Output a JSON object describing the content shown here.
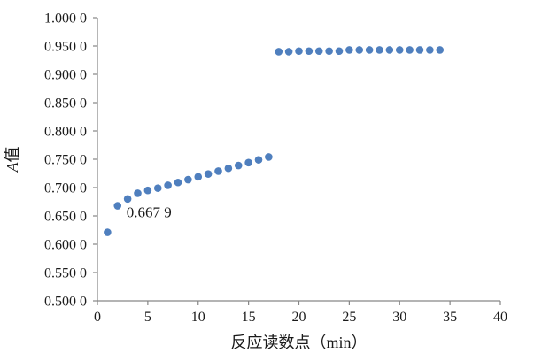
{
  "chart_data": {
    "type": "scatter",
    "title": "",
    "xlabel": "反应读数点（min）",
    "ylabel_italic": "A",
    "ylabel_rest": "值",
    "xlim": [
      0,
      40
    ],
    "ylim": [
      0.5,
      1.0
    ],
    "x_ticks": [
      0,
      5,
      10,
      15,
      20,
      25,
      30,
      35,
      40
    ],
    "x_tick_labels": [
      "0",
      "5",
      "10",
      "15",
      "20",
      "25",
      "30",
      "35",
      "40"
    ],
    "y_ticks": [
      0.5,
      0.55,
      0.6,
      0.65,
      0.7,
      0.75,
      0.8,
      0.85,
      0.9,
      0.95,
      1.0
    ],
    "y_tick_labels": [
      "0.500 0",
      "0.550 0",
      "0.600 0",
      "0.650 0",
      "0.700 0",
      "0.750 0",
      "0.800 0",
      "0.850 0",
      "0.900 0",
      "0.950 0",
      "1.000 0"
    ],
    "grid": false,
    "marker_color": "#4f7fbe",
    "series": [
      {
        "x": [
          1,
          2,
          3,
          4,
          5,
          6,
          7,
          8,
          9,
          10,
          11,
          12,
          13,
          14,
          15,
          16,
          17,
          18,
          19,
          20,
          21,
          22,
          23,
          24,
          25,
          26,
          27,
          28,
          29,
          30,
          31,
          32,
          33,
          34
        ],
        "y": [
          0.621,
          0.6679,
          0.68,
          0.69,
          0.695,
          0.699,
          0.704,
          0.709,
          0.714,
          0.719,
          0.724,
          0.729,
          0.734,
          0.739,
          0.744,
          0.749,
          0.754,
          0.94,
          0.94,
          0.941,
          0.941,
          0.941,
          0.941,
          0.941,
          0.943,
          0.943,
          0.943,
          0.943,
          0.943,
          0.943,
          0.943,
          0.943,
          0.943,
          0.943
        ]
      }
    ],
    "annotations": [
      {
        "text": "0.667 9",
        "x": 2,
        "y": 0.6679
      }
    ]
  }
}
